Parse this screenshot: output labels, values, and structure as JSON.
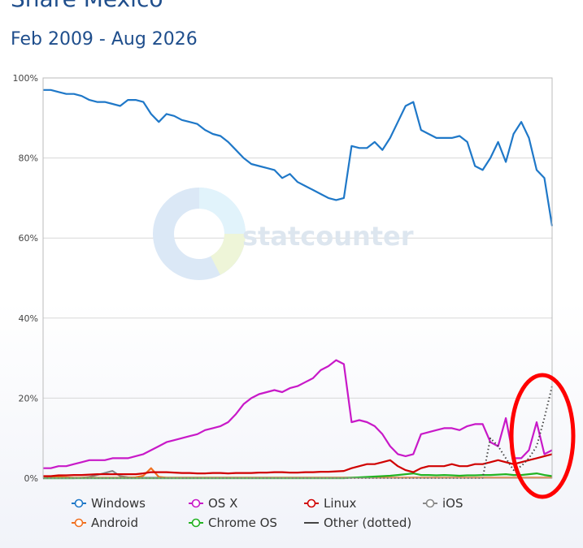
{
  "title": "Share Mexico",
  "subtitle": "Feb 2009 - Aug 2026",
  "watermark": "statcounter",
  "chart_data": {
    "type": "line",
    "x_range": [
      "Feb 2009",
      "Aug 2026"
    ],
    "ylim": [
      0,
      100
    ],
    "y_ticks": [
      "100%",
      "80%",
      "60%",
      "40%",
      "20%",
      "0%"
    ],
    "y_tick_values": [
      100,
      80,
      60,
      40,
      20,
      0
    ],
    "grid": true,
    "legend_placement": "bottom",
    "series": [
      {
        "name": "Windows",
        "color": "#1f78c8",
        "dotted": false,
        "values": [
          97,
          97,
          96.5,
          96,
          96,
          95.5,
          94.5,
          94,
          94,
          93.5,
          93,
          94.5,
          94.5,
          94,
          91,
          89,
          91,
          90.5,
          89.5,
          89,
          88.5,
          87,
          86,
          85.5,
          84,
          82,
          80,
          78.5,
          78,
          77.5,
          77,
          75,
          76,
          74,
          73,
          72,
          71,
          70,
          69.5,
          70,
          83,
          82.5,
          82.5,
          84,
          82,
          85,
          89,
          93,
          94,
          87,
          86,
          85,
          85,
          85,
          85.5,
          84,
          78,
          77,
          80,
          84,
          79,
          86,
          89,
          85,
          77,
          75,
          63
        ]
      },
      {
        "name": "OS X",
        "color": "#c819c8",
        "dotted": false,
        "values": [
          2.5,
          2.5,
          3,
          3,
          3.5,
          4,
          4.5,
          4.5,
          4.5,
          5,
          5,
          5,
          5.5,
          6,
          7,
          8,
          9,
          9.5,
          10,
          10.5,
          11,
          12,
          12.5,
          13,
          14,
          16,
          18.5,
          20,
          21,
          21.5,
          22,
          21.5,
          22.5,
          23,
          24,
          25,
          27,
          28,
          29.5,
          28.5,
          14,
          14.5,
          14,
          13,
          11,
          8,
          6,
          5.5,
          6,
          11,
          11.5,
          12,
          12.5,
          12.5,
          12,
          13,
          13.5,
          13.5,
          9,
          8,
          15,
          5,
          5,
          7,
          14,
          6,
          7
        ]
      },
      {
        "name": "Linux",
        "color": "#d00000",
        "dotted": false,
        "values": [
          0.5,
          0.5,
          0.7,
          0.7,
          0.8,
          0.8,
          0.9,
          1,
          1,
          1,
          1,
          1,
          1,
          1.2,
          1.5,
          1.5,
          1.5,
          1.4,
          1.3,
          1.3,
          1.2,
          1.2,
          1.3,
          1.3,
          1.2,
          1.3,
          1.3,
          1.3,
          1.4,
          1.4,
          1.5,
          1.5,
          1.4,
          1.4,
          1.5,
          1.5,
          1.6,
          1.6,
          1.7,
          1.8,
          2.5,
          3,
          3.5,
          3.5,
          4,
          4.5,
          3,
          2,
          1.5,
          2.5,
          3,
          3,
          3,
          3.5,
          3,
          3,
          3.5,
          3.5,
          4,
          4.5,
          4,
          3.5,
          4,
          4.5,
          5,
          5.5,
          6
        ]
      },
      {
        "name": "iOS",
        "color": "#888888",
        "dotted": false,
        "values": [
          0,
          0,
          0,
          0,
          0,
          0.1,
          0.3,
          0.8,
          1.3,
          1.8,
          0.5,
          0.2,
          0.1,
          0.1,
          0.1,
          0.1,
          0.1,
          0.1,
          0.1,
          0.1,
          0.1,
          0.1,
          0.1,
          0.1,
          0.1,
          0.1,
          0.1,
          0.1,
          0.1,
          0.1,
          0.1,
          0.1,
          0.1,
          0.1,
          0.1,
          0.1,
          0.1,
          0.1,
          0.1,
          0.1,
          0.1,
          0.1,
          0.1,
          0.1,
          0.1,
          0.1,
          0.1,
          0.1,
          0.1,
          0.1,
          0.1,
          0.1,
          0.1,
          0.1,
          0.1,
          0.1,
          0.1,
          0.1,
          0.1,
          0.1,
          0.1,
          0.1,
          0.1,
          0.1,
          0.1,
          0.1,
          0.1
        ]
      },
      {
        "name": "Android",
        "color": "#f07020",
        "dotted": false,
        "values": [
          0,
          0.2,
          0.3,
          0.2,
          0.1,
          0.1,
          0.1,
          0.1,
          0.1,
          0.1,
          0.1,
          0.1,
          0.2,
          0.6,
          2.5,
          0.3,
          0.1,
          0.1,
          0.1,
          0.1,
          0.1,
          0.1,
          0.1,
          0.1,
          0.1,
          0.1,
          0.1,
          0.1,
          0.1,
          0.1,
          0.1,
          0.1,
          0.1,
          0.1,
          0.1,
          0.1,
          0.1,
          0.1,
          0.1,
          0.1,
          0.1,
          0.1,
          0.1,
          0.1,
          0.1,
          0.1,
          0.1,
          0.1,
          0.1,
          0.1,
          0.1,
          0.1,
          0.1,
          0.1,
          0.1,
          0.1,
          0.1,
          0.1,
          0.1,
          0.1,
          0.1,
          0.1,
          0.1,
          0.1,
          0.1,
          0.1,
          0.1
        ]
      },
      {
        "name": "Chrome OS",
        "color": "#22b322",
        "dotted": false,
        "values": [
          0,
          0,
          0,
          0,
          0,
          0,
          0,
          0,
          0,
          0,
          0,
          0,
          0,
          0,
          0,
          0,
          0,
          0,
          0,
          0,
          0,
          0,
          0,
          0,
          0,
          0,
          0,
          0,
          0,
          0,
          0,
          0,
          0,
          0,
          0,
          0,
          0,
          0,
          0,
          0,
          0.1,
          0.2,
          0.3,
          0.4,
          0.5,
          0.6,
          0.8,
          1,
          1.2,
          0.8,
          0.8,
          0.7,
          0.8,
          0.7,
          0.6,
          0.7,
          0.7,
          0.8,
          0.8,
          0.9,
          1,
          0.8,
          0.8,
          1,
          1.2,
          0.8,
          0.5
        ]
      },
      {
        "name": "Other (dotted)",
        "color": "#444444",
        "dotted": true,
        "values": [
          0,
          0,
          0,
          0,
          0,
          0,
          0,
          0,
          0,
          0,
          0,
          0,
          0,
          0,
          0,
          0,
          0,
          0,
          0,
          0,
          0,
          0,
          0,
          0,
          0,
          0,
          0,
          0,
          0,
          0,
          0,
          0,
          0,
          0,
          0,
          0,
          0,
          0,
          0,
          0,
          0,
          0,
          0,
          0,
          0,
          0,
          0,
          0,
          0,
          0,
          0,
          0,
          0,
          0,
          0,
          0,
          0,
          0,
          10,
          8,
          5,
          2,
          3,
          5,
          8,
          15,
          23
        ]
      }
    ]
  }
}
